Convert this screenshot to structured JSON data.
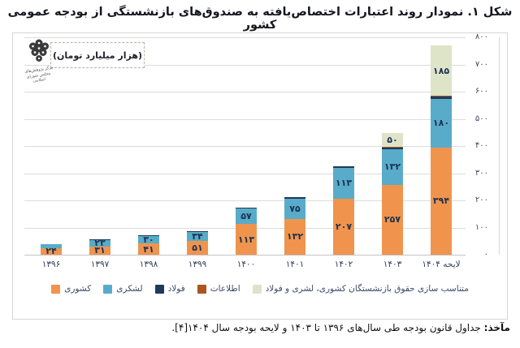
{
  "title": "شکل ۱. نمودار روند اعتبارات اختصاص‌یافته به صندوق‌های بازنشستگی از بودجه عمومی کشور",
  "chart": {
    "units_label": "(هزار میلیارد تومان)"
  },
  "logo": {
    "caption_line1": "مرکز پژوهش‌های",
    "caption_line2": "مجلس شورای اسلامی"
  },
  "source": {
    "label": "مآخذ:",
    "text": " جداول قانون بودجه طی سال‌های ۱۳۹۶ تا ۱۴۰۳ و لایحه بودجه سال ۱۴۰۴[۴]."
  },
  "chart_data": {
    "type": "bar",
    "stacked": true,
    "title": "شکل ۱. نمودار روند اعتبارات اختصاص‌یافته به صندوق‌های بازنشستگی از بودجه عمومی کشور",
    "units": "هزار میلیارد تومان",
    "ylim": [
      0,
      800
    ],
    "grid": true,
    "y_axis_side": "right",
    "legend_position": "bottom",
    "categories": [
      "۱۳۹۶",
      "۱۳۹۷",
      "۱۳۹۸",
      "۱۳۹۹",
      "۱۴۰۰",
      "۱۴۰۱",
      "۱۴۰۲",
      "۱۴۰۳",
      "لایحه ۱۴۰۴"
    ],
    "y_ticks": [
      {
        "value": 0,
        "label": "۰"
      },
      {
        "value": 100,
        "label": "۱۰۰"
      },
      {
        "value": 200,
        "label": "۲۰۰"
      },
      {
        "value": 300,
        "label": "۳۰۰"
      },
      {
        "value": 400,
        "label": "۴۰۰"
      },
      {
        "value": 500,
        "label": "۵۰۰"
      },
      {
        "value": 600,
        "label": "۶۰۰"
      },
      {
        "value": 700,
        "label": "۷۰۰"
      },
      {
        "value": 800,
        "label": "۸۰۰"
      }
    ],
    "series": [
      {
        "name": "کشوری",
        "color": "#f0944d",
        "values": [
          24,
          31,
          41,
          51,
          113,
          132,
          207,
          257,
          394
        ],
        "labels": [
          "۲۴",
          "۳۱",
          "۴۱",
          "۵۱",
          "۱۱۳",
          "۱۳۲",
          "۲۰۷",
          "۲۵۷",
          "۳۹۴"
        ]
      },
      {
        "name": "لشکری",
        "color": "#58acc9",
        "values": [
          15,
          23,
          30,
          34,
          57,
          75,
          113,
          132,
          180
        ],
        "labels": [
          "",
          "۲۳",
          "۳۰",
          "۳۴",
          "۵۷",
          "۷۵",
          "۱۱۳",
          "۱۳۲",
          "۱۸۰"
        ]
      },
      {
        "name": "فولاد",
        "color": "#1f3a5c",
        "values": [
          0,
          2,
          2,
          3,
          4,
          5,
          6,
          7,
          8
        ],
        "labels": [
          "",
          "",
          "",
          "",
          "",
          "",
          "",
          "",
          ""
        ]
      },
      {
        "name": "اطلاعات",
        "color": "#a9561f",
        "values": [
          0,
          0,
          0,
          0,
          0,
          0,
          0,
          2,
          3
        ],
        "labels": [
          "",
          "",
          "",
          "",
          "",
          "",
          "",
          "",
          ""
        ]
      },
      {
        "name": "متناسب سازی حقوق بازنشستگان کشوری، لشری و فولاد",
        "color": "#dee4c8",
        "values": [
          0,
          0,
          0,
          0,
          0,
          0,
          0,
          50,
          185
        ],
        "labels": [
          "",
          "",
          "",
          "",
          "",
          "",
          "",
          "۵۰",
          "۱۸۵"
        ]
      }
    ]
  }
}
